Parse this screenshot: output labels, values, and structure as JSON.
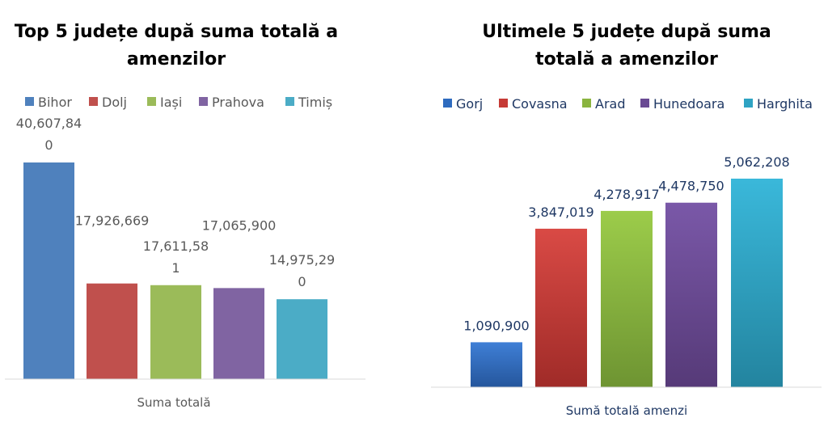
{
  "chart_data": [
    {
      "type": "bar",
      "title_lines": [
        "Top 5 județe după suma totală a",
        "amenzilor"
      ],
      "xlabel": "Suma totală",
      "categories": [
        "Suma totală"
      ],
      "legend_position": "top",
      "grid": false,
      "ylim": [
        0,
        45000000
      ],
      "series": [
        {
          "name": "Bihor",
          "value": 40607840,
          "label_lines": [
            "40,607,84",
            "0"
          ],
          "color": "#4f81bd"
        },
        {
          "name": "Dolj",
          "value": 17926669,
          "label_lines": [
            "17,926,669"
          ],
          "color": "#c0504d"
        },
        {
          "name": "Iași",
          "value": 17611581,
          "label_lines": [
            "17,611,58",
            "1"
          ],
          "color": "#9bbb59"
        },
        {
          "name": "Prahova",
          "value": 17065900,
          "label_lines": [
            "17,065,900"
          ],
          "color": "#8064a2"
        },
        {
          "name": "Timiș",
          "value": 14975290,
          "label_lines": [
            "14,975,29",
            "0"
          ],
          "color": "#4bacc6"
        }
      ]
    },
    {
      "type": "bar",
      "title_lines": [
        "Ultimele 5 județe după suma",
        "totală a amenzilor"
      ],
      "xlabel": "Sumă totală amenzi",
      "categories": [
        "Sumă totală amenzi"
      ],
      "legend_position": "top",
      "grid": false,
      "ylim": [
        0,
        6000000
      ],
      "series": [
        {
          "name": "Gorj",
          "value": 1090900,
          "label_lines": [
            "1,090,900"
          ],
          "color": "#2e6bbf",
          "color_light": "#3f7fd6",
          "color_dark": "#25569c"
        },
        {
          "name": "Covasna",
          "value": 3847019,
          "label_lines": [
            "3,847,019"
          ],
          "color": "#c63a36",
          "color_light": "#d94a45",
          "color_dark": "#a02b28"
        },
        {
          "name": "Arad",
          "value": 4278917,
          "label_lines": [
            "4,278,917"
          ],
          "color": "#8ab43f",
          "color_light": "#9ccc4a",
          "color_dark": "#6e9432"
        },
        {
          "name": "Hunedoara",
          "value": 4478750,
          "label_lines": [
            "4,478,750"
          ],
          "color": "#6a4a93",
          "color_light": "#7a58a8",
          "color_dark": "#563a78"
        },
        {
          "name": "Harghita",
          "value": 5062208,
          "label_lines": [
            "5,062,208"
          ],
          "color": "#2ea3c3",
          "color_light": "#3ab8da",
          "color_dark": "#23849f"
        }
      ]
    }
  ]
}
